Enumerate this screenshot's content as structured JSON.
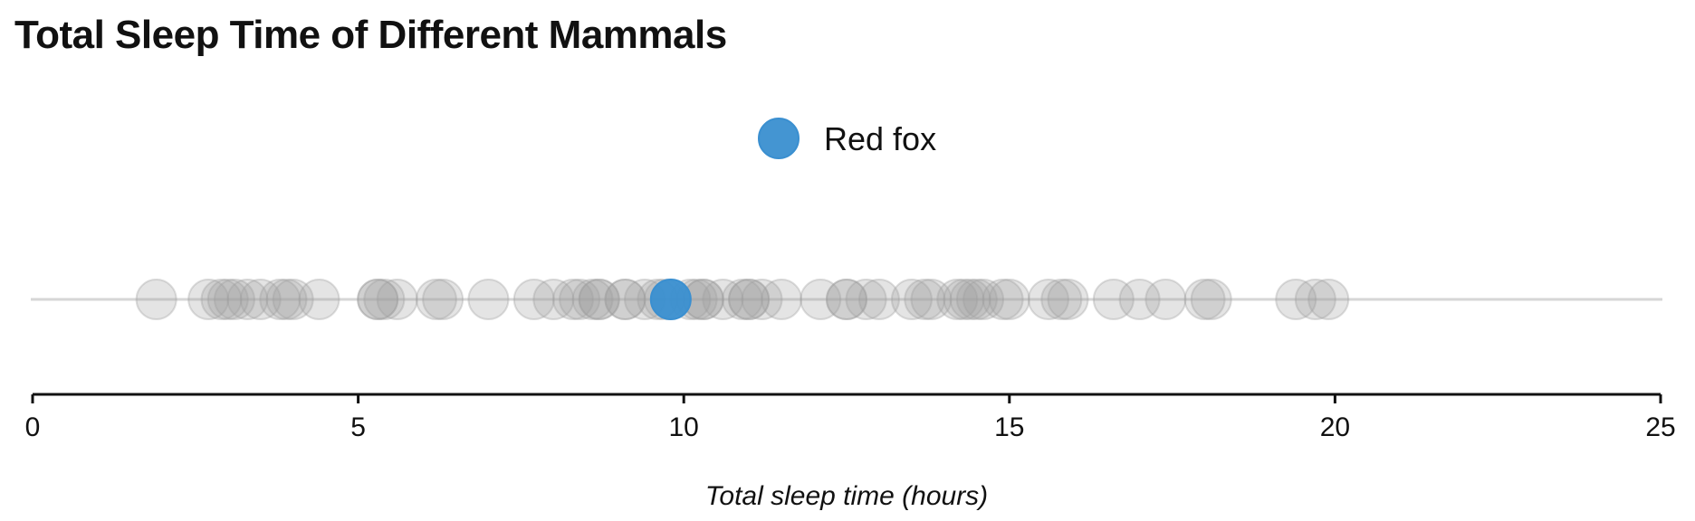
{
  "chart_data": {
    "type": "scatter",
    "title": "Total Sleep Time of Different Mammals",
    "xlabel": "Total sleep time (hours)",
    "xlim": [
      0,
      25
    ],
    "x_ticks": [
      0,
      5,
      10,
      15,
      20,
      25
    ],
    "tick_labels": [
      "0",
      "5",
      "10",
      "15",
      "20",
      "25"
    ],
    "highlight": {
      "name": "Red fox",
      "x": 9.8,
      "color": "#3a8fd0"
    },
    "other_points_color": "#9e9e9e",
    "x": [
      1.9,
      2.7,
      2.9,
      3.0,
      3.1,
      3.3,
      3.5,
      3.8,
      3.9,
      4.0,
      4.4,
      5.3,
      5.3,
      5.4,
      5.6,
      6.2,
      6.3,
      7.0,
      7.7,
      8.0,
      8.3,
      8.4,
      8.6,
      8.7,
      8.7,
      9.1,
      9.1,
      9.4,
      9.6,
      9.7,
      10.1,
      10.2,
      10.3,
      10.3,
      10.6,
      10.9,
      11.0,
      11.0,
      11.2,
      11.5,
      12.1,
      12.5,
      12.5,
      12.8,
      13.0,
      13.5,
      13.7,
      13.8,
      14.2,
      14.3,
      14.4,
      14.5,
      14.6,
      14.9,
      15.0,
      15.6,
      15.8,
      15.9,
      16.6,
      17.0,
      17.4,
      18.0,
      18.1,
      19.4,
      19.7,
      19.9
    ],
    "grid": false,
    "legend_position": "top-center"
  }
}
